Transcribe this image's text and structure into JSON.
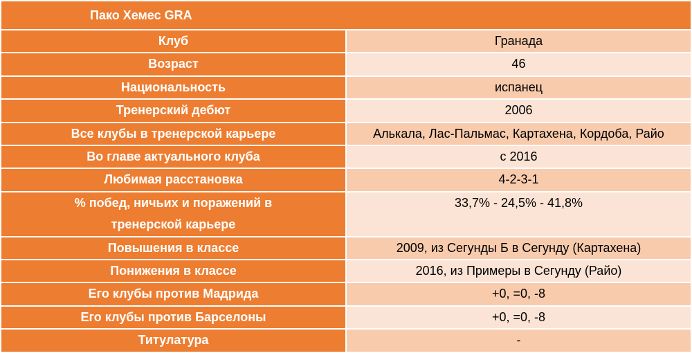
{
  "header": {
    "title": "Пако Хемес GRA"
  },
  "table": {
    "rows": [
      [
        "Клуб",
        "Гранада"
      ],
      [
        "Возраст",
        "46"
      ],
      [
        "Национальность",
        "испанец"
      ],
      [
        "Тренерский дебют",
        "2006"
      ],
      [
        "Все клубы в тренерской карьере",
        "Алькала, Лас-Пальмас, Картахена, Кордоба, Райо"
      ],
      [
        "Во главе актуального клуба",
        "с 2016"
      ],
      [
        "Любимая расстановка",
        "4-2-3-1"
      ],
      [
        "% побед, ничьих и поражений в тренерской карьере",
        "33,7% - 24,5% - 41,8%"
      ],
      [
        "Повышения в классе",
        "2009, из Сегунды Б в Сегунду (Картахена)"
      ],
      [
        "Понижения в классе",
        "2016, из Примеры в Сегунду (Райо)"
      ],
      [
        "Его клубы против Мадрида",
        "+0, =0, -8"
      ],
      [
        "Его клубы против Барселоны",
        "+0, =0, -8"
      ],
      [
        "Титулатура",
        "-"
      ]
    ]
  }
}
